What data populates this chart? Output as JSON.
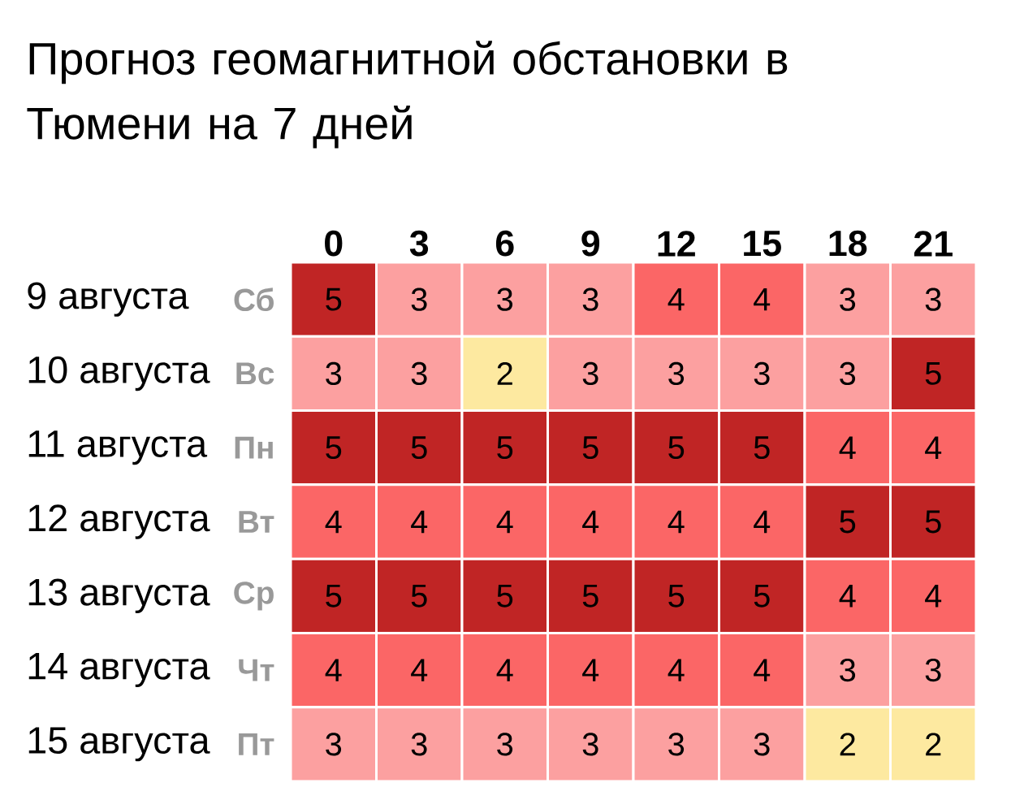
{
  "chart_data": {
    "type": "heatmap",
    "data_labels": true,
    "title": "Прогноз геомагнитной обстановки в Тюмени на 7 дней",
    "categories": [
      "0",
      "3",
      "6",
      "9",
      "12",
      "15",
      "18",
      "21"
    ],
    "y_categories": [
      "9 августа",
      "10 августа",
      "11 августа",
      "12 августа",
      "13 августа",
      "14 августа",
      "15 августа"
    ],
    "y2_categories": [
      "Сб",
      "Вс",
      "Пн",
      "Вт",
      "Ср",
      "Чт",
      "Пт"
    ],
    "cells": [
      [
        5,
        3,
        3,
        3,
        4,
        4,
        3,
        3
      ],
      [
        3,
        3,
        2,
        3,
        3,
        3,
        3,
        5
      ],
      [
        5,
        5,
        5,
        5,
        5,
        5,
        4,
        4
      ],
      [
        4,
        4,
        4,
        4,
        4,
        4,
        5,
        5
      ],
      [
        5,
        5,
        5,
        5,
        5,
        5,
        4,
        4
      ],
      [
        4,
        4,
        4,
        4,
        4,
        4,
        3,
        3
      ],
      [
        3,
        3,
        3,
        3,
        3,
        3,
        2,
        2
      ]
    ],
    "colors": [
      [
        "#c02525",
        "#fca0a0",
        "#fca0a0",
        "#fca0a0",
        "#fb6666",
        "#fb6666",
        "#fca0a0",
        "#fca0a0"
      ],
      [
        "#fca0a0",
        "#fca0a0",
        "#fde9a0",
        "#fca0a0",
        "#fca0a0",
        "#fca0a0",
        "#fca0a0",
        "#c02525"
      ],
      [
        "#c02525",
        "#c02525",
        "#c02525",
        "#c02525",
        "#c02525",
        "#c02525",
        "#fb6666",
        "#fb6666"
      ],
      [
        "#fb6666",
        "#fb6666",
        "#fb6666",
        "#fb6666",
        "#fb6666",
        "#fb6666",
        "#c02525",
        "#c02525"
      ],
      [
        "#c02525",
        "#c02525",
        "#c02525",
        "#c02525",
        "#c02525",
        "#c02525",
        "#fb6666",
        "#fb6666"
      ],
      [
        "#fb6666",
        "#fb6666",
        "#fb6666",
        "#fb6666",
        "#fb6666",
        "#fb6666",
        "#fca0a0",
        "#fca0a0"
      ],
      [
        "#fca0a0",
        "#fca0a0",
        "#fca0a0",
        "#fca0a0",
        "#fca0a0",
        "#fca0a0",
        "#fde9a0",
        "#fde9a0"
      ]
    ]
  }
}
